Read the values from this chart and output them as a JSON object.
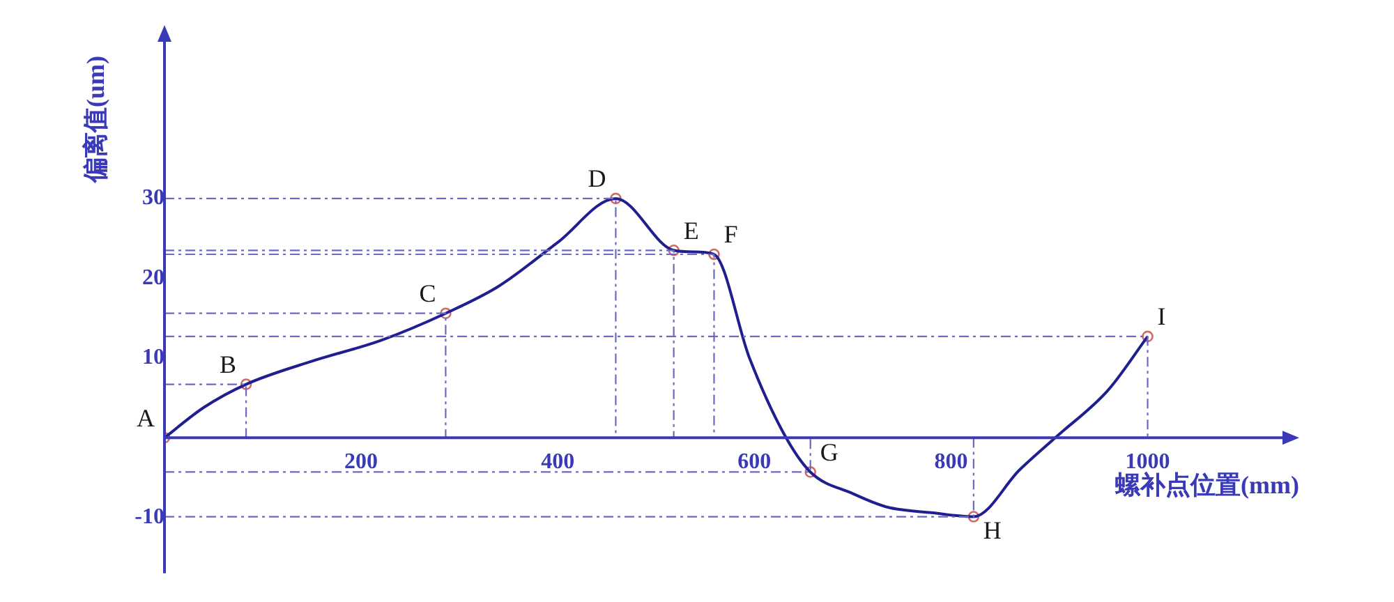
{
  "chart_data": {
    "type": "line",
    "xlabel": "螺补点位置(mm)",
    "ylabel": "偏离值(um)",
    "xlim": [
      0,
      1140
    ],
    "ylim": [
      -17,
      50
    ],
    "xticks": [
      200,
      400,
      600,
      800,
      1000
    ],
    "yticks": [
      -10,
      10,
      20,
      30
    ],
    "grid": false,
    "legend": false,
    "series": [
      {
        "type": "line",
        "color": "#6a6ac0",
        "marker": "none",
        "line_style": "dashed",
        "x": [
          0,
          83,
          83
        ],
        "values": [
          6.7,
          6.7,
          0
        ]
      },
      {
        "type": "line",
        "color": "#6a6ac0",
        "marker": "none",
        "line_style": "dashed",
        "x": [
          0,
          286,
          286
        ],
        "values": [
          15.6,
          15.6,
          0
        ]
      },
      {
        "type": "line",
        "color": "#6a6ac0",
        "marker": "none",
        "line_style": "dashed",
        "x": [
          0,
          459,
          459
        ],
        "values": [
          30,
          30,
          0
        ]
      },
      {
        "type": "line",
        "color": "#6a6ac0",
        "marker": "none",
        "line_style": "dashed",
        "x": [
          0,
          518,
          518
        ],
        "values": [
          23.5,
          23.5,
          0
        ]
      },
      {
        "type": "line",
        "color": "#6a6ac0",
        "marker": "none",
        "line_style": "dashed",
        "x": [
          0,
          559,
          559
        ],
        "values": [
          23,
          23,
          0
        ]
      },
      {
        "type": "line",
        "color": "#6a6ac0",
        "marker": "none",
        "line_style": "dashed",
        "x": [
          0,
          657,
          657
        ],
        "values": [
          -4.3,
          -4.3,
          0
        ]
      },
      {
        "type": "line",
        "color": "#6a6ac0",
        "marker": "none",
        "line_style": "dashed",
        "x": [
          0,
          823,
          823
        ],
        "values": [
          -9.9,
          -9.9,
          0
        ]
      },
      {
        "type": "line",
        "color": "#6a6ac0",
        "marker": "none",
        "line_style": "dashed",
        "x": [
          0,
          1000,
          1000
        ],
        "values": [
          12.7,
          12.7,
          0
        ]
      },
      {
        "color": "#1f1f8f",
        "marker": "none",
        "line_style": "solid",
        "x": [
          0,
          40,
          83,
          150,
          220,
          286,
          340,
          400,
          459,
          518,
          540,
          559,
          595,
          630,
          657,
          700,
          735,
          780,
          823,
          870,
          906,
          960,
          1000
        ],
        "values": [
          0,
          3.8,
          6.7,
          9.6,
          12.2,
          15.6,
          19,
          24.5,
          30,
          23.5,
          23.3,
          23,
          10,
          0.5,
          -4.3,
          -7,
          -8.7,
          -9.4,
          -9.9,
          -4,
          0,
          6,
          12.7
        ]
      },
      {
        "type": "scatter",
        "color": "#d06a6a",
        "marker": "circle",
        "x": [
          0,
          83,
          286,
          459,
          518,
          559,
          657,
          823,
          1000
        ],
        "values": [
          0,
          6.7,
          15.6,
          30,
          23.5,
          23,
          -4.3,
          -9.9,
          12.7
        ]
      }
    ],
    "annotations": [
      {
        "text": "A",
        "x": 0,
        "y": 0
      },
      {
        "text": "B",
        "x": 83,
        "y": 6.7
      },
      {
        "text": "C",
        "x": 286,
        "y": 15.6
      },
      {
        "text": "D",
        "x": 459,
        "y": 30
      },
      {
        "text": "E",
        "x": 518,
        "y": 23.5
      },
      {
        "text": "F",
        "x": 559,
        "y": 23
      },
      {
        "text": "G",
        "x": 657,
        "y": -4.3
      },
      {
        "text": "H",
        "x": 823,
        "y": -9.9
      },
      {
        "text": "I",
        "x": 1000,
        "y": 12.7
      }
    ]
  }
}
